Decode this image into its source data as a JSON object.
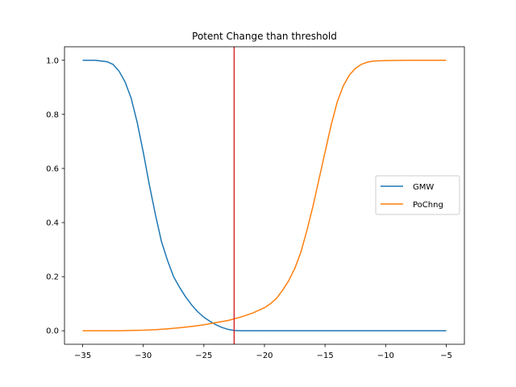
{
  "chart_data": {
    "type": "line",
    "title": "Potent Change than threshold",
    "xlabel": "",
    "ylabel": "",
    "xlim": [
      -36.5,
      -3.5
    ],
    "ylim": [
      -0.05,
      1.05
    ],
    "xticks": [
      -35,
      -30,
      -25,
      -20,
      -15,
      -10,
      -5
    ],
    "xtick_labels": [
      "−35",
      "−30",
      "−25",
      "−20",
      "−15",
      "−10",
      "−5"
    ],
    "yticks": [
      0.0,
      0.2,
      0.4,
      0.6,
      0.8,
      1.0
    ],
    "ytick_labels": [
      "0.0",
      "0.2",
      "0.4",
      "0.6",
      "0.8",
      "1.0"
    ],
    "grid": false,
    "legend_position": "center-right",
    "threshold": {
      "x": -22.5,
      "color": "#d62728"
    },
    "series": [
      {
        "name": "GMW",
        "color": "#1f77b4",
        "x": [
          -35,
          -34,
          -33,
          -32.5,
          -32,
          -31.5,
          -31,
          -30.5,
          -30,
          -29.5,
          -29,
          -28.5,
          -28,
          -27.5,
          -27,
          -26.5,
          -26,
          -25.5,
          -25,
          -24.5,
          -24,
          -23.5,
          -23,
          -22.5,
          -22,
          -21.5,
          -20,
          -15,
          -10,
          -5
        ],
        "y": [
          1.0,
          1.0,
          0.995,
          0.985,
          0.96,
          0.92,
          0.86,
          0.77,
          0.66,
          0.54,
          0.43,
          0.33,
          0.26,
          0.2,
          0.16,
          0.125,
          0.095,
          0.07,
          0.05,
          0.035,
          0.022,
          0.012,
          0.005,
          0.001,
          0.0,
          0.0,
          0.0,
          0.0,
          0.0,
          0.0
        ]
      },
      {
        "name": "PoChng",
        "color": "#ff7f0e",
        "x": [
          -35,
          -32,
          -30,
          -29,
          -28,
          -27,
          -26,
          -25,
          -24,
          -23,
          -22,
          -21,
          -20,
          -19.5,
          -19,
          -18.5,
          -18,
          -17.5,
          -17,
          -16.5,
          -16,
          -15.5,
          -15,
          -14.5,
          -14,
          -13.5,
          -13,
          -12.5,
          -12,
          -11.5,
          -11,
          -10,
          -8,
          -5
        ],
        "y": [
          0.0,
          0.0,
          0.002,
          0.004,
          0.007,
          0.011,
          0.016,
          0.022,
          0.03,
          0.038,
          0.05,
          0.065,
          0.085,
          0.1,
          0.12,
          0.15,
          0.185,
          0.23,
          0.29,
          0.37,
          0.46,
          0.56,
          0.66,
          0.76,
          0.845,
          0.905,
          0.945,
          0.97,
          0.985,
          0.993,
          0.997,
          0.999,
          1.0,
          1.0
        ]
      }
    ]
  }
}
